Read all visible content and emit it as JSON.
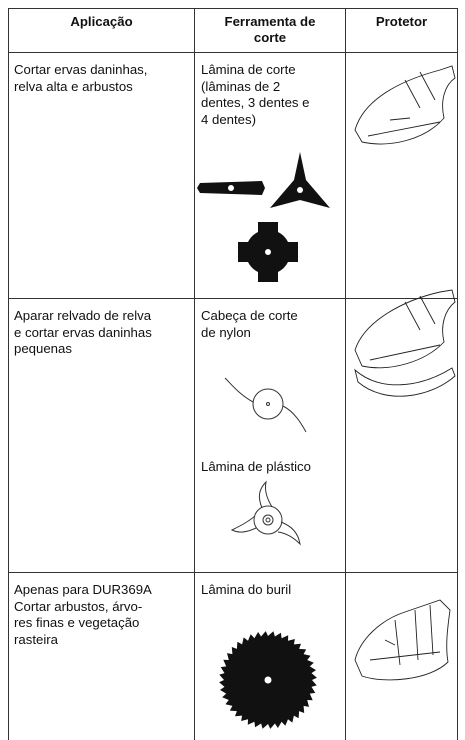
{
  "table": {
    "header": [
      "Aplicação",
      "Ferramenta de corte",
      "Protetor"
    ],
    "rows": [
      {
        "application": [
          "Cortar ervas daninhas,",
          "relva alta e arbustos"
        ],
        "tools": [
          [
            "Lâmina de corte",
            "(lâminas de 2",
            "dentes, 3 dentes e",
            "4 dentes)"
          ]
        ]
      },
      {
        "application": [
          "Aparar relvado de relva",
          "e cortar ervas daninhas",
          "pequenas"
        ],
        "tools": [
          [
            "Cabeça de corte",
            "de nylon"
          ],
          [
            "Lâmina de plástico"
          ]
        ]
      },
      {
        "application": [
          "Apenas para DUR369A",
          "Cortar arbustos, árvo-",
          "res finas e vegetação",
          "rasteira"
        ],
        "tools": [
          [
            "Lâmina do buril"
          ]
        ]
      }
    ]
  }
}
